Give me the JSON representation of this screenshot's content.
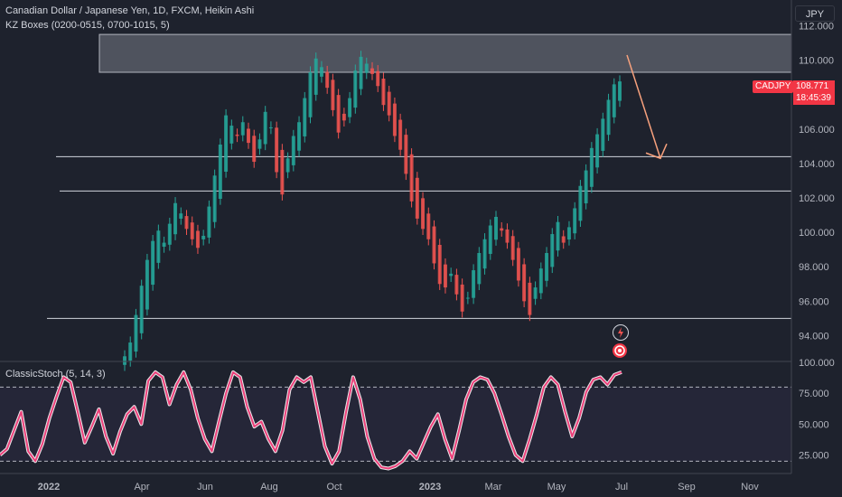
{
  "header": {
    "title": "Canadian Dollar / Japanese Yen, 1D, FXCM, Heikin Ashi",
    "indicator": "KZ Boxes (0200-0515, 0700-1015, 5)"
  },
  "currency_button": "JPY",
  "price_tag": {
    "symbol": "CADJPY",
    "price": "108.771",
    "countdown": "18:45:39"
  },
  "oscillator": {
    "label": "ClassicStoch (5, 14, 3)"
  },
  "colors": {
    "background": "#1e222d",
    "up": "#26a69a",
    "down": "#ef5350",
    "stoch": "#ec407a",
    "box": "#787b86",
    "arrow": "#f7a17d",
    "level": "#d1d4dc"
  },
  "icons": [
    "lightning-icon",
    "target-icon"
  ],
  "chart_data": [
    {
      "type": "candlestick",
      "title": "Canadian Dollar / Japanese Yen, 1D, FXCM, Heikin Ashi",
      "x_ticks": [
        "2022",
        "Apr",
        "Jun",
        "Aug",
        "Oct",
        "2023",
        "Mar",
        "May",
        "Jul",
        "Sep",
        "Nov"
      ],
      "y_ticks": [
        "94.000",
        "96.000",
        "98.000",
        "100.000",
        "102.000",
        "104.000",
        "106.000",
        "108.000",
        "110.000",
        "112.000"
      ],
      "ylim": [
        92.5,
        113.5
      ],
      "horizontal_levels": [
        104.4,
        102.4,
        95.0
      ],
      "zone": {
        "y_low": 109.3,
        "y_high": 111.5
      },
      "last_price": 108.771,
      "projection": {
        "from": {
          "date": "Jul",
          "y": 110.3
        },
        "to": {
          "date": "Aug",
          "y": 104.3
        }
      },
      "series": [
        {
          "y": [
            92.8,
            93.6,
            95.2,
            96.9,
            98.4,
            99.5,
            100.1,
            99.4,
            100.5,
            101.7,
            101.1,
            100.2,
            99.6,
            99.1,
            99.8,
            101.5,
            103.3,
            105.1,
            106.8,
            106.2,
            105.6,
            106.4,
            105.2,
            104.1,
            105.4,
            107.0,
            106.1,
            103.5,
            102.2,
            104.3,
            105.6,
            106.4,
            107.8,
            109.3,
            110.1,
            109.6,
            108.4,
            107.1,
            105.8,
            106.5,
            107.8,
            109.4,
            110.2,
            109.8,
            109.2,
            108.5,
            107.4,
            106.8,
            105.6,
            104.8,
            103.4,
            101.8,
            100.8,
            100.2,
            99.6,
            98.2,
            97.0,
            96.8,
            97.6,
            96.4,
            95.4,
            96.2,
            97.8,
            98.8,
            99.6,
            100.4,
            100.9,
            100.1,
            99.4,
            98.4,
            97.2,
            96.0,
            95.2,
            96.8,
            97.9,
            98.8,
            99.9,
            100.6,
            99.4,
            100.3,
            101.4,
            102.7,
            103.6,
            104.9,
            105.7,
            106.6,
            107.7,
            108.6,
            108.77
          ]
        }
      ]
    },
    {
      "type": "line",
      "title": "ClassicStoch (5, 14, 3)",
      "y_ticks": [
        "25.000",
        "50.000",
        "75.000",
        "100.000"
      ],
      "ylim": [
        10,
        100
      ],
      "bands": [
        20,
        80
      ],
      "series": [
        {
          "name": "ClassicStoch",
          "y": [
            25,
            30,
            45,
            60,
            28,
            20,
            34,
            55,
            72,
            88,
            84,
            60,
            35,
            48,
            62,
            40,
            26,
            44,
            58,
            64,
            50,
            85,
            92,
            88,
            66,
            82,
            92,
            78,
            55,
            38,
            28,
            52,
            75,
            92,
            88,
            64,
            48,
            52,
            38,
            28,
            45,
            78,
            88,
            84,
            88,
            60,
            32,
            18,
            28,
            60,
            88,
            70,
            40,
            22,
            15,
            14,
            16,
            20,
            28,
            22,
            35,
            48,
            58,
            38,
            22,
            45,
            70,
            84,
            88,
            86,
            75,
            58,
            40,
            25,
            20,
            38,
            58,
            80,
            88,
            82,
            60,
            40,
            55,
            76,
            86,
            88,
            82,
            90,
            92
          ]
        }
      ]
    }
  ]
}
